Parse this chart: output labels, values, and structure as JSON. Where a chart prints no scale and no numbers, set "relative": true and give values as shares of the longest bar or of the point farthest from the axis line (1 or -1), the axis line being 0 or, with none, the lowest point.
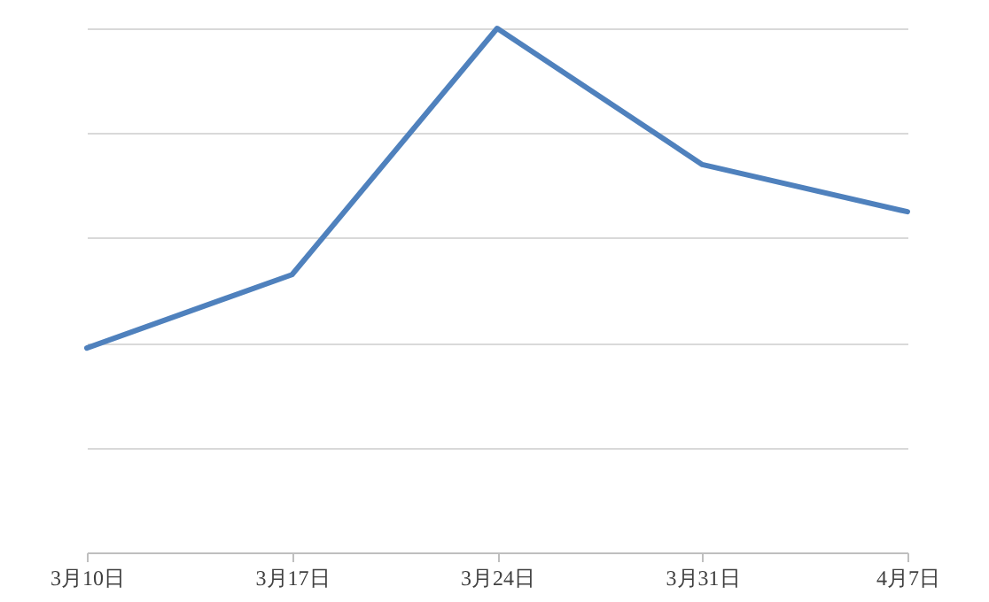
{
  "chart_data": {
    "type": "line",
    "relative": true,
    "grid": "y",
    "line_style": "solid",
    "categories": [
      "3月10日",
      "3月17日",
      "3月24日",
      "3月31日",
      "4月7日"
    ],
    "series": [
      {
        "color": "#4f81bd",
        "values": [
          0.39,
          0.53,
          1,
          0.74,
          0.65
        ]
      }
    ]
  }
}
